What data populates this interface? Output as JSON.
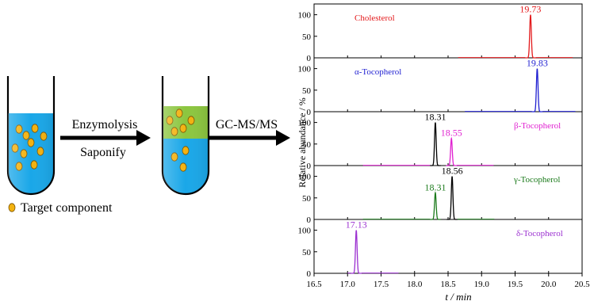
{
  "workflow": {
    "step1_label": "Enzymolysis",
    "step2_label": "Saponify",
    "step3_label": "GC-MS/MS",
    "legend_label": "Target component",
    "colors": {
      "liquid": "#1aa7e8",
      "organic_layer": "#8cc63f",
      "particle_fill": "#f3b20f",
      "particle_stroke": "#7a5200",
      "arrow": "#000000"
    }
  },
  "chart_data": {
    "type": "line",
    "ylabel": "Relative abundance / %",
    "xlabel": "t / min",
    "xlim": [
      16.5,
      20.5
    ],
    "ylim": [
      0,
      125
    ],
    "x_ticks": [
      "16.5",
      "17.0",
      "17.5",
      "18.0",
      "18.5",
      "19.0",
      "19.5",
      "20.0",
      "20.5"
    ],
    "y_ticks": [
      "0",
      "50",
      "100"
    ],
    "grid": false,
    "panels": [
      {
        "name": "Cholesterol",
        "color": "#e31a1c",
        "peaks": [
          {
            "x": 19.73,
            "y": 100,
            "label": "19.73",
            "color": "#e31a1c"
          }
        ]
      },
      {
        "name": "α-Tocopherol",
        "color": "#1f1fd1",
        "peaks": [
          {
            "x": 19.83,
            "y": 100,
            "label": "19.83",
            "color": "#1f1fd1"
          }
        ]
      },
      {
        "name": "β-Tocopherol",
        "color": "#e020d0",
        "peaks": [
          {
            "x": 18.31,
            "y": 100,
            "label": "18.31",
            "color": "#000000"
          },
          {
            "x": 18.55,
            "y": 63,
            "label": "18.55",
            "color": "#e020d0"
          }
        ]
      },
      {
        "name": "γ-Tocopherol",
        "color": "#1b7a1b",
        "peaks": [
          {
            "x": 18.31,
            "y": 62,
            "label": "18.31",
            "color": "#1b7a1b"
          },
          {
            "x": 18.56,
            "y": 100,
            "label": "18.56",
            "color": "#000000"
          }
        ]
      },
      {
        "name": "δ-Tocopherol",
        "color": "#9b30d0",
        "peaks": [
          {
            "x": 17.13,
            "y": 100,
            "label": "17.13",
            "color": "#9b30d0"
          }
        ]
      }
    ]
  }
}
